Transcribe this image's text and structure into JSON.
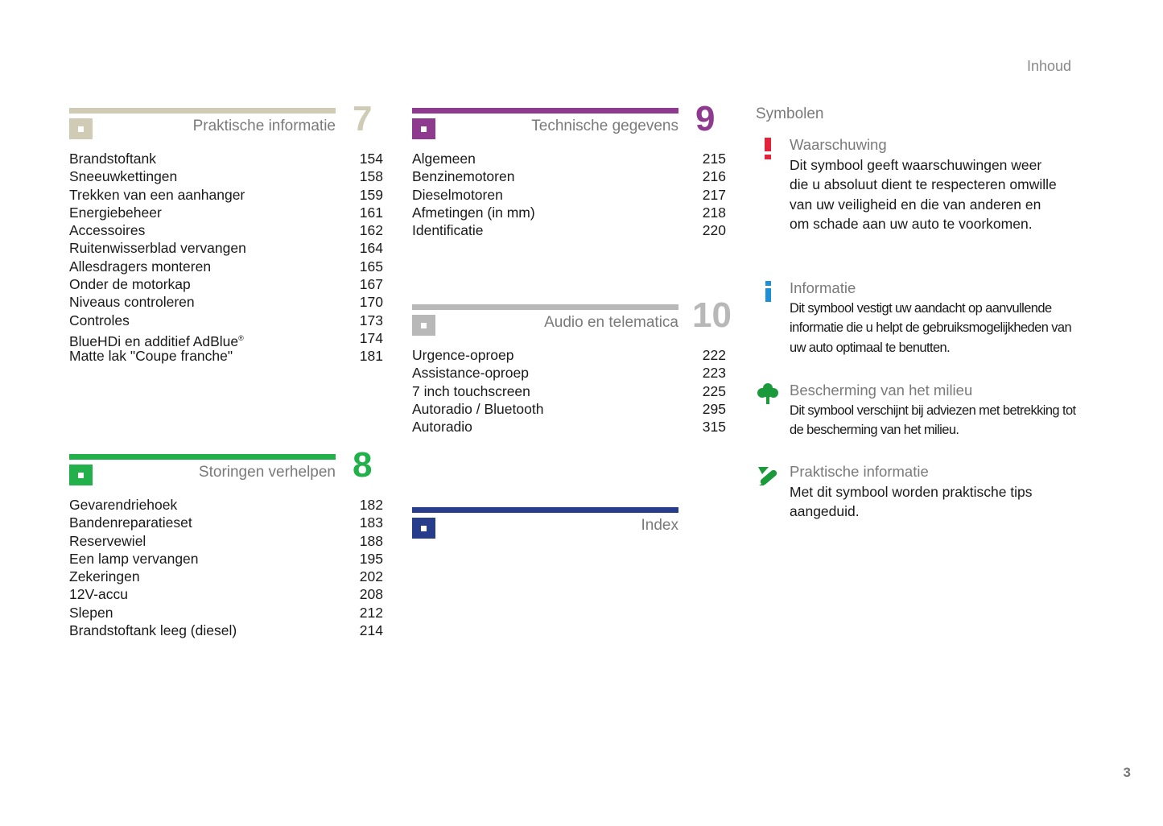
{
  "header": {
    "page_label": "Inhoud",
    "page_number": "3"
  },
  "sections": [
    {
      "id": "praktische",
      "title": "Praktische informatie",
      "number": "7",
      "color": "#cfcbb5",
      "items": [
        [
          "Brandstoftank",
          "154"
        ],
        [
          "Sneeuwkettingen",
          "158"
        ],
        [
          "Trekken van een aanhanger",
          "159"
        ],
        [
          "Energiebeheer",
          "161"
        ],
        [
          "Accessoires",
          "162"
        ],
        [
          "Ruitenwisserblad vervangen",
          "164"
        ],
        [
          "Allesdragers monteren",
          "165"
        ],
        [
          "Onder de motorkap",
          "167"
        ],
        [
          "Niveaus controleren",
          "170"
        ],
        [
          "Controles",
          "173"
        ],
        [
          "BlueHDi en additief AdBlue",
          "174"
        ],
        [
          "Matte lak \"Coupe franche\"",
          "181"
        ]
      ],
      "sup": {
        "index": 10,
        "text": "®"
      }
    },
    {
      "id": "storingen",
      "title": "Storingen verhelpen",
      "number": "8",
      "color": "#22b04b",
      "items": [
        [
          "Gevarendriehoek",
          "182"
        ],
        [
          "Bandenreparatieset",
          "183"
        ],
        [
          "Reservewiel",
          "188"
        ],
        [
          "Een lamp vervangen",
          "195"
        ],
        [
          "Zekeringen",
          "202"
        ],
        [
          "12V-accu",
          "208"
        ],
        [
          "Slepen",
          "212"
        ],
        [
          "Brandstoftank leeg (diesel)",
          "214"
        ]
      ]
    },
    {
      "id": "technische",
      "title": "Technische gegevens",
      "number": "9",
      "color": "#8e3a8e",
      "items": [
        [
          "Algemeen",
          "215"
        ],
        [
          "Benzinemotoren",
          "216"
        ],
        [
          "Dieselmotoren",
          "217"
        ],
        [
          "Afmetingen (in mm)",
          "218"
        ],
        [
          "Identificatie",
          "220"
        ]
      ]
    },
    {
      "id": "audio",
      "title": "Audio en telematica",
      "number": "10",
      "color": "#b8b8b8",
      "items": [
        [
          "Urgence-oproep",
          "222"
        ],
        [
          "Assistance-oproep",
          "223"
        ],
        [
          "7 inch touchscreen",
          "225"
        ],
        [
          "Autoradio / Bluetooth",
          "295"
        ],
        [
          "Autoradio",
          "315"
        ]
      ]
    },
    {
      "id": "index",
      "title": "Index",
      "number": "",
      "color": "#283c8c",
      "items": []
    }
  ],
  "symbols": {
    "heading": "Symbolen",
    "items": [
      {
        "icon": "warning-exclamation-icon",
        "color": "#e2233a",
        "title": "Waarschuwing",
        "text": "Dit symbool geeft waarschuwingen weer die u absoluut dient te respecteren omwille van uw veiligheid en die van anderen en om schade aan uw auto te voorkomen."
      },
      {
        "icon": "info-icon",
        "color": "#1e90d6",
        "title": "Informatie",
        "text": "Dit symbool vestigt uw aandacht op aanvullende informatie die u helpt de gebruiksmogelijkheden van uw auto optimaal te benutten."
      },
      {
        "icon": "tree-icon",
        "color": "#1a9a3a",
        "title": "Bescherming van het milieu",
        "text": "Dit symbool verschijnt bij adviezen met betrekking tot de bescherming van het milieu."
      },
      {
        "icon": "pocket-knife-icon",
        "color": "#1a9a3a",
        "title": "Praktische informatie",
        "text": "Met dit symbool worden praktische tips aangeduid."
      }
    ]
  }
}
